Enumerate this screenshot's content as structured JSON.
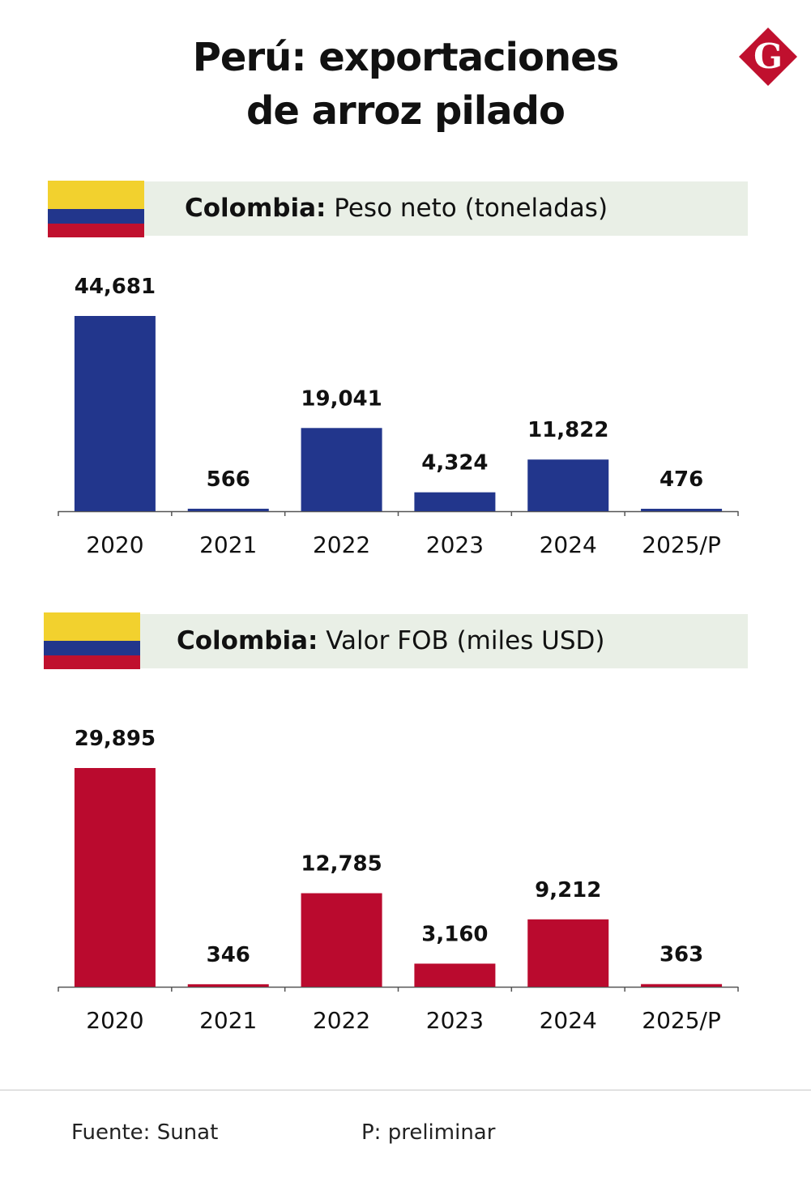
{
  "title_line1": "Perú: exportaciones",
  "title_line2": "de arroz pilado",
  "logo_letter": "G",
  "colors": {
    "brand": "#c0102e",
    "header_bg": "#e9efe6",
    "flag_yellow": "#f2d12e",
    "flag_blue": "#22368c",
    "flag_red": "#c0102e"
  },
  "footer": {
    "source": "Fuente: Sunat",
    "note": "P: preliminar"
  },
  "chart_data": [
    {
      "type": "bar",
      "header_bold": "Colombia:",
      "header_rest": " Peso neto (toneladas)",
      "color": "#22368c",
      "categories": [
        "2020",
        "2021",
        "2022",
        "2023",
        "2024",
        "2025/P"
      ],
      "values": [
        44681,
        566,
        19041,
        4324,
        11822,
        476
      ],
      "labels": [
        "44,681",
        "566",
        "19,041",
        "4,324",
        "11,822",
        "476"
      ]
    },
    {
      "type": "bar",
      "header_bold": "Colombia:",
      "header_rest": " Valor FOB (miles USD)",
      "color": "#ba0a2e",
      "categories": [
        "2020",
        "2021",
        "2022",
        "2023",
        "2024",
        "2025/P"
      ],
      "values": [
        29895,
        346,
        12785,
        3160,
        9212,
        363
      ],
      "labels": [
        "29,895",
        "346",
        "12,785",
        "3,160",
        "9,212",
        "363"
      ]
    }
  ]
}
